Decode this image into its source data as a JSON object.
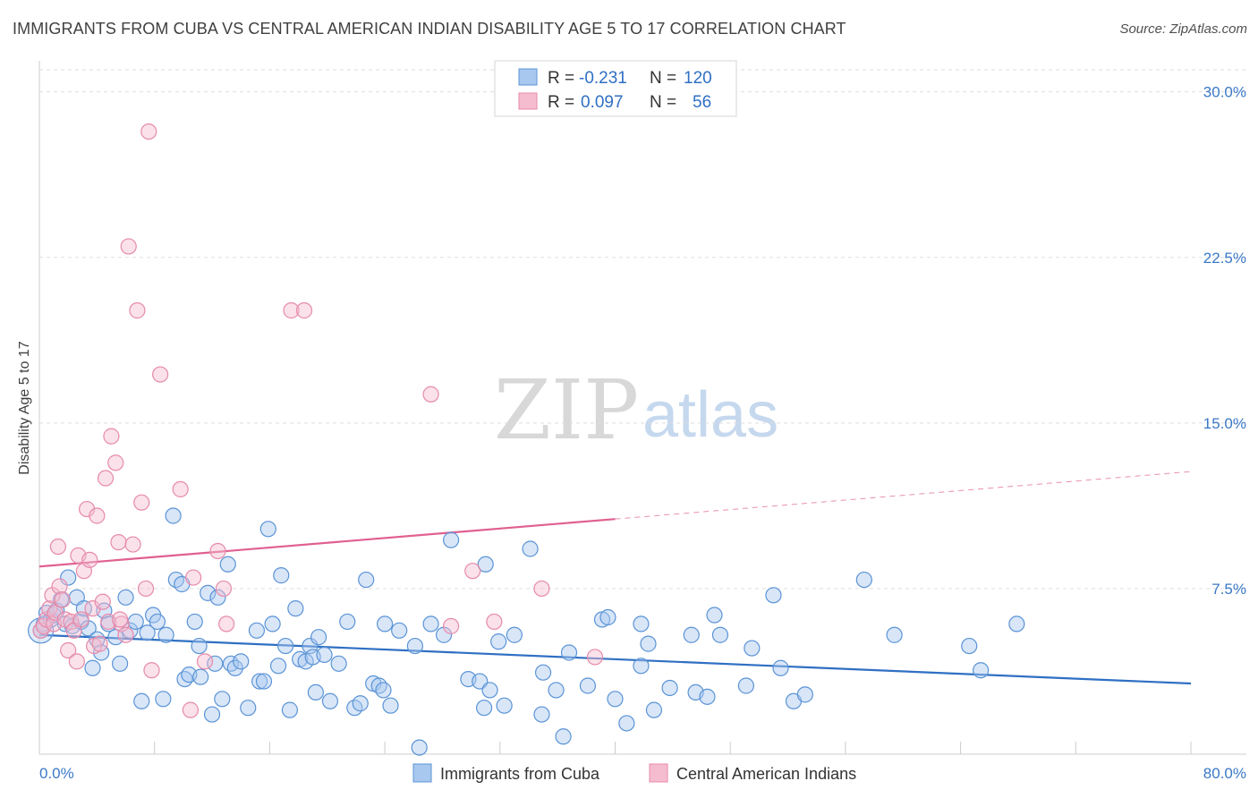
{
  "title": "IMMIGRANTS FROM CUBA VS CENTRAL AMERICAN INDIAN DISABILITY AGE 5 TO 17 CORRELATION CHART",
  "source": "Source: ZipAtlas.com",
  "watermark": {
    "zip": "ZIP",
    "atlas": "atlas"
  },
  "colors": {
    "blue_fill": "#a9c8ef",
    "blue_stroke": "#5a93d6",
    "blue_line": "#2f6fc3",
    "pink_fill": "#f5bcd0",
    "pink_stroke": "#e68aaa",
    "pink_line": "#e06090",
    "tick_text": "#3a78c6",
    "grid": "#dddddd"
  },
  "legend": {
    "rows": [
      {
        "r_label": "R =",
        "r_value": "-0.231",
        "n_label": "N =",
        "n_value": "120"
      },
      {
        "r_label": "R =",
        "r_value": "0.097",
        "n_label": "N =",
        "n_value": "56"
      }
    ]
  },
  "chart_data": {
    "type": "scatter",
    "title": "IMMIGRANTS FROM CUBA VS CENTRAL AMERICAN INDIAN DISABILITY AGE 5 TO 17 CORRELATION CHART",
    "xlabel": "",
    "ylabel": "Disability Age 5 to 17",
    "xlim": [
      0,
      80
    ],
    "ylim": [
      0,
      31
    ],
    "x_tick_labels": [
      "0.0%",
      "80.0%"
    ],
    "y_ticks": [
      7.5,
      15.0,
      22.5,
      30.0
    ],
    "y_tick_labels": [
      "7.5%",
      "15.0%",
      "22.5%",
      "30.0%"
    ],
    "grid": "horizontal dashed",
    "legend_position": "top-center",
    "series": [
      {
        "name": "Immigrants from Cuba",
        "color": "#a9c8ef",
        "trend": {
          "x0": 0,
          "y0": 5.4,
          "x1": 80,
          "y1": 3.2,
          "solid_to": 80
        },
        "points": [
          [
            0.1,
            5.6
          ],
          [
            0.3,
            5.9
          ],
          [
            0.5,
            6.4
          ],
          [
            0.8,
            6.1
          ],
          [
            1.0,
            6.3
          ],
          [
            1.2,
            6.5
          ],
          [
            1.5,
            7.0
          ],
          [
            1.8,
            5.9
          ],
          [
            2.0,
            8.0
          ],
          [
            2.3,
            5.8
          ],
          [
            2.6,
            7.1
          ],
          [
            2.9,
            6.0
          ],
          [
            3.1,
            6.6
          ],
          [
            3.4,
            5.7
          ],
          [
            3.7,
            3.9
          ],
          [
            4.0,
            5.2
          ],
          [
            4.3,
            4.6
          ],
          [
            4.5,
            6.5
          ],
          [
            4.8,
            5.9
          ],
          [
            5.3,
            5.3
          ],
          [
            5.6,
            4.1
          ],
          [
            6.0,
            7.1
          ],
          [
            6.3,
            5.6
          ],
          [
            6.7,
            6.0
          ],
          [
            7.1,
            2.4
          ],
          [
            7.5,
            5.5
          ],
          [
            7.9,
            6.3
          ],
          [
            8.2,
            6.0
          ],
          [
            8.6,
            2.5
          ],
          [
            8.8,
            5.4
          ],
          [
            9.3,
            10.8
          ],
          [
            9.5,
            7.9
          ],
          [
            9.9,
            7.7
          ],
          [
            10.1,
            3.4
          ],
          [
            10.4,
            3.6
          ],
          [
            10.8,
            6.0
          ],
          [
            11.1,
            4.9
          ],
          [
            11.2,
            3.5
          ],
          [
            11.7,
            7.3
          ],
          [
            12.0,
            1.8
          ],
          [
            12.2,
            4.1
          ],
          [
            12.4,
            7.1
          ],
          [
            12.7,
            2.5
          ],
          [
            13.1,
            8.6
          ],
          [
            13.3,
            4.1
          ],
          [
            13.6,
            3.9
          ],
          [
            14.0,
            4.2
          ],
          [
            14.5,
            2.1
          ],
          [
            15.1,
            5.6
          ],
          [
            15.3,
            3.3
          ],
          [
            15.6,
            3.3
          ],
          [
            15.9,
            10.2
          ],
          [
            16.2,
            5.9
          ],
          [
            16.6,
            4.0
          ],
          [
            16.8,
            8.1
          ],
          [
            17.1,
            4.9
          ],
          [
            17.4,
            2.0
          ],
          [
            17.8,
            6.6
          ],
          [
            18.1,
            4.3
          ],
          [
            18.5,
            4.2
          ],
          [
            18.8,
            4.9
          ],
          [
            19.0,
            4.4
          ],
          [
            19.2,
            2.8
          ],
          [
            19.4,
            5.3
          ],
          [
            19.8,
            4.5
          ],
          [
            20.2,
            2.4
          ],
          [
            20.8,
            4.1
          ],
          [
            21.4,
            6.0
          ],
          [
            21.9,
            2.1
          ],
          [
            22.3,
            2.3
          ],
          [
            22.7,
            7.9
          ],
          [
            23.2,
            3.2
          ],
          [
            23.6,
            3.1
          ],
          [
            23.9,
            2.9
          ],
          [
            24.0,
            5.9
          ],
          [
            24.4,
            2.2
          ],
          [
            25.0,
            5.6
          ],
          [
            26.1,
            4.9
          ],
          [
            26.4,
            0.3
          ],
          [
            27.2,
            5.9
          ],
          [
            28.1,
            5.4
          ],
          [
            28.6,
            9.7
          ],
          [
            29.8,
            3.4
          ],
          [
            30.6,
            3.3
          ],
          [
            30.9,
            2.1
          ],
          [
            31.0,
            8.6
          ],
          [
            31.3,
            2.9
          ],
          [
            31.9,
            5.1
          ],
          [
            32.3,
            2.2
          ],
          [
            33.0,
            5.4
          ],
          [
            34.1,
            9.3
          ],
          [
            34.9,
            1.8
          ],
          [
            35.0,
            3.7
          ],
          [
            35.9,
            2.9
          ],
          [
            36.4,
            0.8
          ],
          [
            36.8,
            4.6
          ],
          [
            38.1,
            3.1
          ],
          [
            39.1,
            6.1
          ],
          [
            39.5,
            6.2
          ],
          [
            40.0,
            2.5
          ],
          [
            40.8,
            1.4
          ],
          [
            41.8,
            4.0
          ],
          [
            42.3,
            5.0
          ],
          [
            42.7,
            2.0
          ],
          [
            43.8,
            3.0
          ],
          [
            45.3,
            5.4
          ],
          [
            45.6,
            2.8
          ],
          [
            46.4,
            2.6
          ],
          [
            46.9,
            6.3
          ],
          [
            47.3,
            5.4
          ],
          [
            49.1,
            3.1
          ],
          [
            49.5,
            4.8
          ],
          [
            51.0,
            7.2
          ],
          [
            51.5,
            3.9
          ],
          [
            52.4,
            2.4
          ],
          [
            53.2,
            2.7
          ],
          [
            57.3,
            7.9
          ],
          [
            59.4,
            5.4
          ],
          [
            64.6,
            4.9
          ],
          [
            65.4,
            3.8
          ],
          [
            67.9,
            5.9
          ],
          [
            41.8,
            5.9
          ]
        ]
      },
      {
        "name": "Central American Indians",
        "color": "#f5bcd0",
        "trend": {
          "x0": 0,
          "y0": 8.5,
          "x1": 80,
          "y1": 12.8,
          "solid_to": 40
        },
        "points": [
          [
            0.1,
            5.6
          ],
          [
            0.3,
            5.8
          ],
          [
            0.5,
            6.1
          ],
          [
            0.7,
            6.6
          ],
          [
            0.9,
            7.2
          ],
          [
            1.0,
            5.9
          ],
          [
            1.1,
            6.4
          ],
          [
            1.3,
            9.4
          ],
          [
            1.4,
            7.6
          ],
          [
            1.6,
            7.0
          ],
          [
            1.8,
            6.1
          ],
          [
            2.0,
            4.7
          ],
          [
            2.2,
            6.0
          ],
          [
            2.4,
            5.6
          ],
          [
            2.6,
            4.2
          ],
          [
            2.7,
            9.0
          ],
          [
            2.9,
            6.1
          ],
          [
            3.1,
            8.3
          ],
          [
            3.3,
            11.1
          ],
          [
            3.5,
            8.8
          ],
          [
            3.7,
            6.6
          ],
          [
            3.8,
            4.9
          ],
          [
            4.0,
            10.8
          ],
          [
            4.2,
            5.0
          ],
          [
            4.4,
            6.9
          ],
          [
            4.6,
            12.5
          ],
          [
            4.8,
            6.0
          ],
          [
            5.0,
            14.4
          ],
          [
            5.3,
            13.2
          ],
          [
            5.5,
            9.6
          ],
          [
            5.7,
            5.9
          ],
          [
            6.0,
            5.4
          ],
          [
            6.2,
            23.0
          ],
          [
            6.5,
            9.5
          ],
          [
            6.8,
            20.1
          ],
          [
            7.1,
            11.4
          ],
          [
            7.4,
            7.5
          ],
          [
            7.6,
            28.2
          ],
          [
            7.8,
            3.8
          ],
          [
            8.4,
            17.2
          ],
          [
            9.8,
            12.0
          ],
          [
            10.5,
            2.0
          ],
          [
            10.7,
            8.0
          ],
          [
            11.5,
            4.2
          ],
          [
            12.4,
            9.2
          ],
          [
            12.8,
            7.5
          ],
          [
            13.0,
            5.9
          ],
          [
            17.5,
            20.1
          ],
          [
            18.4,
            20.1
          ],
          [
            27.2,
            16.3
          ],
          [
            28.6,
            5.8
          ],
          [
            30.1,
            8.3
          ],
          [
            31.6,
            6.0
          ],
          [
            34.9,
            7.5
          ],
          [
            38.6,
            4.4
          ],
          [
            5.6,
            6.1
          ]
        ]
      }
    ]
  },
  "bottom_legend": [
    {
      "label": "Immigrants from Cuba"
    },
    {
      "label": "Central American Indians"
    }
  ]
}
